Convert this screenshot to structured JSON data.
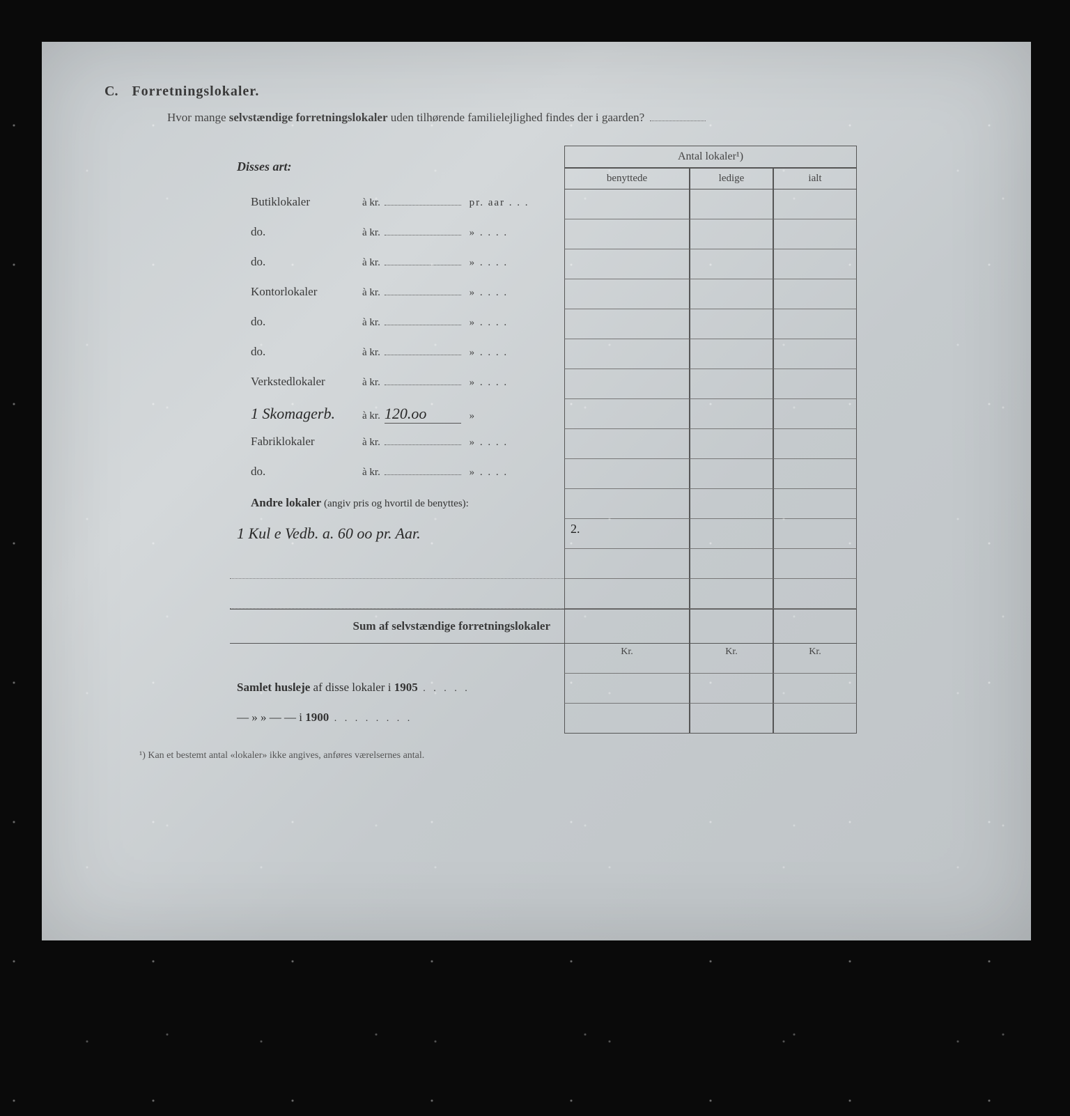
{
  "section": {
    "letter": "C.",
    "title": "Forretningslokaler.",
    "question_prefix": "Hvor mange ",
    "question_bold": "selvstændige forretningslokaler",
    "question_suffix": " uden tilhørende familielejlighed findes der i gaarden?"
  },
  "table": {
    "header_left": "Disses art:",
    "header_group": "Antal lokaler¹)",
    "col1": "benyttede",
    "col2": "ledige",
    "col3": "ialt",
    "rows": [
      {
        "label": "Butiklokaler",
        "akr": "à kr.",
        "value": "",
        "suffix": "pr. aar . . .",
        "c1": "",
        "c2": "",
        "c3": ""
      },
      {
        "label": "do.",
        "akr": "à kr.",
        "value": "",
        "suffix": "»   . . . .",
        "c1": "",
        "c2": "",
        "c3": ""
      },
      {
        "label": "do.",
        "akr": "à kr.",
        "value": "",
        "suffix": "»   . . . .",
        "c1": "",
        "c2": "",
        "c3": ""
      },
      {
        "label": "Kontorlokaler",
        "akr": "à kr.",
        "value": "",
        "suffix": "»   . . . .",
        "c1": "",
        "c2": "",
        "c3": ""
      },
      {
        "label": "do.",
        "akr": "à kr.",
        "value": "",
        "suffix": "»   . . . .",
        "c1": "",
        "c2": "",
        "c3": ""
      },
      {
        "label": "do.",
        "akr": "à kr.",
        "value": "",
        "suffix": "»   . . . .",
        "c1": "",
        "c2": "",
        "c3": ""
      },
      {
        "label": "Verkstedlokaler",
        "akr": "à kr.",
        "value": "",
        "suffix": "»   . . . .",
        "c1": "",
        "c2": "",
        "c3": ""
      },
      {
        "label": "1 Skomagerb.",
        "akr": "à kr.",
        "value": "120.oo",
        "suffix": "»",
        "c1": "",
        "c2": "",
        "c3": "",
        "hand": true
      },
      {
        "label": "Fabriklokaler",
        "akr": "à kr.",
        "value": "",
        "suffix": "»   . . . .",
        "c1": "",
        "c2": "",
        "c3": ""
      },
      {
        "label": "do.",
        "akr": "à kr.",
        "value": "",
        "suffix": "»   . . . .",
        "c1": "",
        "c2": "",
        "c3": ""
      }
    ],
    "andre_label_bold": "Andre lokaler",
    "andre_label_paren": " (angiv pris og hvortil de benyttes):",
    "andre_rows": [
      {
        "text": "1 Kul e Vedb. a. 60 oo pr. Aar.",
        "c1": "2.",
        "c2": "",
        "c3": ""
      },
      {
        "text": "",
        "c1": "",
        "c2": "",
        "c3": ""
      },
      {
        "text": "",
        "c1": "",
        "c2": "",
        "c3": ""
      }
    ],
    "sum_label": "Sum af selvstændige forretningslokaler",
    "kr": "Kr.",
    "husleje_bold": "Samlet husleje",
    "husleje_text": " af disse lokaler i ",
    "year1": "1905",
    "husleje2_prefix": "—        »        »        —        —     i ",
    "year2": "1900"
  },
  "footnote": "¹) Kan et bestemt antal «lokaler» ikke angives, anføres værelsernes antal."
}
